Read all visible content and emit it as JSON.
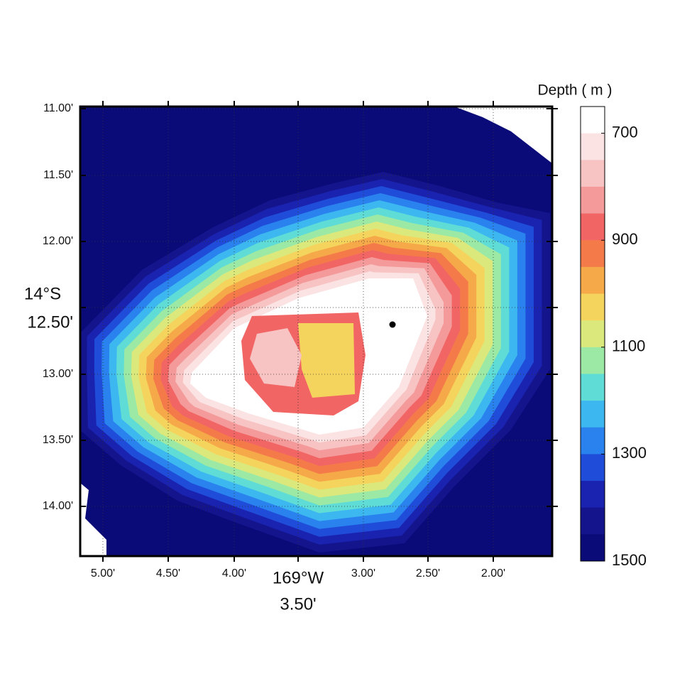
{
  "map": {
    "x_ticks": [
      "5.00'",
      "4.50'",
      "4.00'",
      "3.50'",
      "3.00'",
      "2.50'",
      "2.00'"
    ],
    "x_major_label": "169°W",
    "y_ticks": [
      "11.00'",
      "11.50'",
      "12.00'",
      "12.50'",
      "13.00'",
      "13.50'",
      "14.00'"
    ],
    "y_major_label": "14°S"
  },
  "colorbar": {
    "title": "Depth ( m )",
    "range": [
      650,
      1500
    ],
    "ticks": [
      700,
      900,
      1100,
      1300,
      1500
    ],
    "colors": [
      "#ffffff",
      "#fbe3e3",
      "#f7c3c3",
      "#f49a9a",
      "#f26565",
      "#f47a4a",
      "#f5a948",
      "#f5d45e",
      "#dbe97c",
      "#9ce9a6",
      "#5fdcd6",
      "#3cb7f0",
      "#2a82ee",
      "#1f4cd8",
      "#1a22b0",
      "#14148c",
      "#0a0a78"
    ]
  }
}
